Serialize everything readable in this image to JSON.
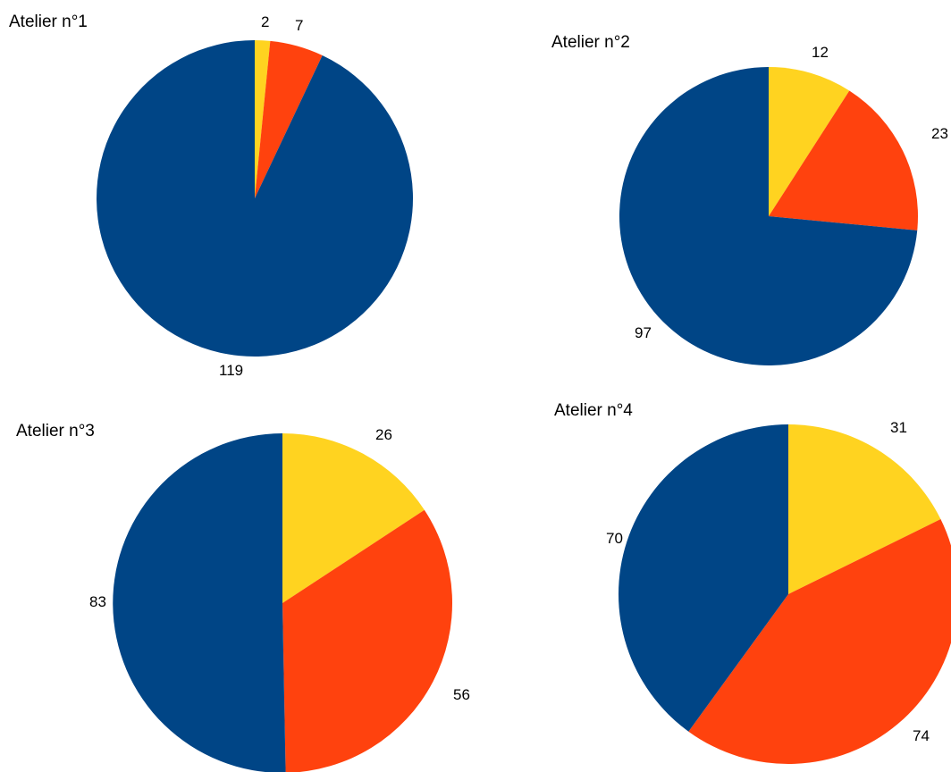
{
  "chart_data": [
    {
      "type": "pie",
      "title": "Atelier n°1",
      "values": [
        2,
        7,
        119
      ],
      "colors": [
        "#FFD320",
        "#FF420E",
        "#004586"
      ]
    },
    {
      "type": "pie",
      "title": "Atelier n°2",
      "values": [
        12,
        23,
        97
      ],
      "colors": [
        "#FFD320",
        "#FF420E",
        "#004586"
      ]
    },
    {
      "type": "pie",
      "title": "Atelier n°3",
      "values": [
        26,
        56,
        83
      ],
      "colors": [
        "#FFD320",
        "#FF420E",
        "#004586"
      ]
    },
    {
      "type": "pie",
      "title": "Atelier n°4",
      "values": [
        31,
        74,
        70
      ],
      "colors": [
        "#FFD320",
        "#FF420E",
        "#004586"
      ]
    }
  ]
}
